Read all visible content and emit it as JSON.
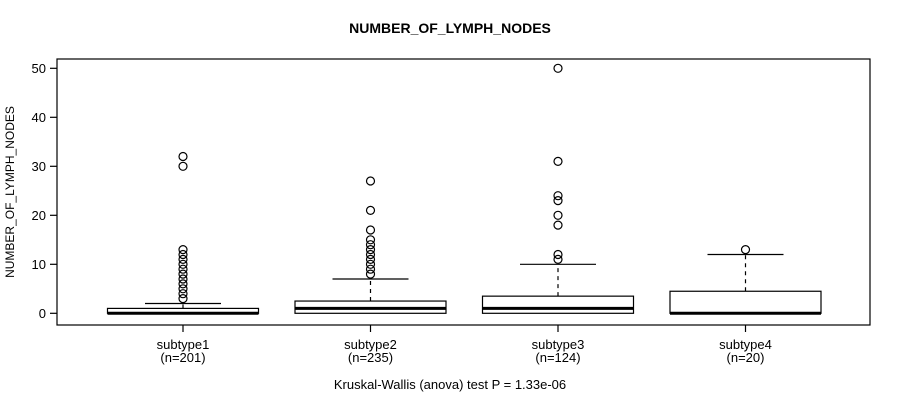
{
  "title": "NUMBER_OF_LYMPH_NODES",
  "caption": "Kruskal-Wallis (anova) test P = 1.33e-06",
  "colors": {
    "stroke": "#000000",
    "background": "#ffffff"
  },
  "chart_data": {
    "type": "boxplot",
    "title": "NUMBER_OF_LYMPH_NODES",
    "ylabel": "NUMBER_OF_LYMPH_NODES",
    "xlabel": "",
    "ylim": [
      0,
      50
    ],
    "yticks": [
      0,
      10,
      20,
      30,
      40,
      50
    ],
    "grid": false,
    "footnote": "Kruskal-Wallis (anova) test P = 1.33e-06",
    "groups": [
      {
        "label": "subtype1",
        "sublabel": "(n=201)",
        "n": 201,
        "whisker_low": 0,
        "q1": 0,
        "median": 0,
        "q3": 1,
        "whisker_high": 2,
        "outliers": [
          3,
          4,
          5,
          6,
          7,
          8,
          9,
          10,
          11,
          12,
          13,
          30,
          32
        ]
      },
      {
        "label": "subtype2",
        "sublabel": "(n=235)",
        "n": 235,
        "whisker_low": 0,
        "q1": 0,
        "median": 1,
        "q3": 2.5,
        "whisker_high": 7,
        "outliers": [
          8,
          9,
          10,
          11,
          12,
          13,
          14,
          15,
          17,
          21,
          27
        ]
      },
      {
        "label": "subtype3",
        "sublabel": "(n=124)",
        "n": 124,
        "whisker_low": 0,
        "q1": 0,
        "median": 1,
        "q3": 3.5,
        "whisker_high": 10,
        "outliers": [
          11,
          12,
          18,
          20,
          23,
          24,
          31,
          50
        ]
      },
      {
        "label": "subtype4",
        "sublabel": "(n=20)",
        "n": 20,
        "whisker_low": 0,
        "q1": 0,
        "median": 0,
        "q3": 4.5,
        "whisker_high": 12,
        "outliers": [
          13
        ]
      }
    ]
  }
}
